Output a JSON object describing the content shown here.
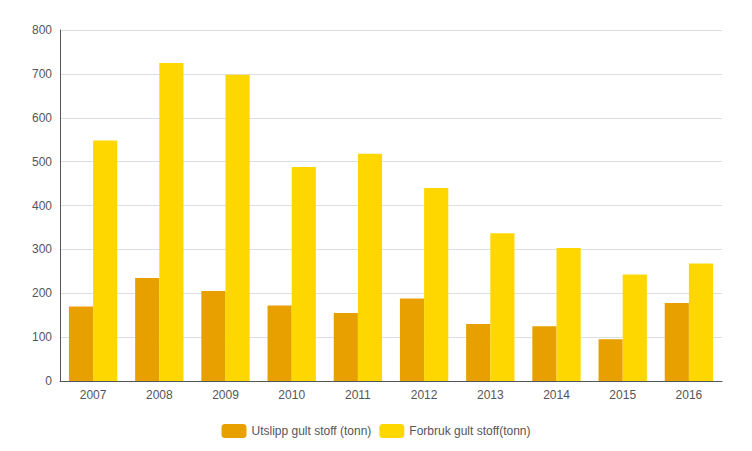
{
  "chart_data": {
    "type": "bar",
    "categories": [
      "2007",
      "2008",
      "2009",
      "2010",
      "2011",
      "2012",
      "2013",
      "2014",
      "2015",
      "2016"
    ],
    "series": [
      {
        "name": "Utslipp gult stoff (tonn)",
        "color": "#E8A000",
        "values": [
          170,
          235,
          205,
          172,
          155,
          188,
          130,
          125,
          95,
          178
        ]
      },
      {
        "name": "Forbruk gult stoff(tonn)",
        "color": "#FFD700",
        "values": [
          548,
          725,
          698,
          488,
          518,
          440,
          337,
          303,
          243,
          268
        ]
      }
    ],
    "ylim": [
      0,
      800
    ],
    "yticks": [
      0,
      100,
      200,
      300,
      400,
      500,
      600,
      700,
      800
    ],
    "grid": true,
    "legend": "bottom"
  }
}
